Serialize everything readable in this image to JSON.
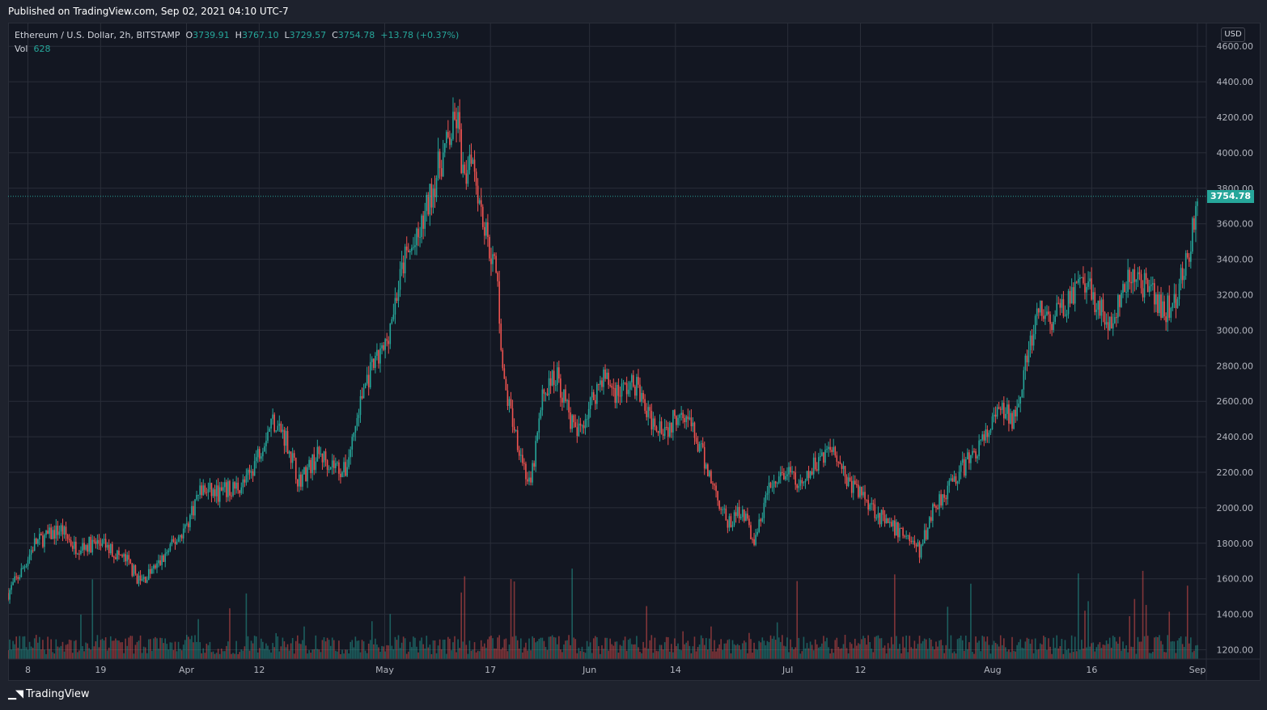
{
  "header": {
    "published": "Published on TradingView.com, Sep 02, 2021 04:10 UTC-7"
  },
  "legend": {
    "symbol": "Ethereum / U.S. Dollar, 2h, BITSTAMP",
    "o_label": "O",
    "o_value": "3739.91",
    "h_label": "H",
    "h_value": "3767.10",
    "l_label": "L",
    "l_value": "3729.57",
    "c_label": "C",
    "c_value": "3754.78",
    "change": "+13.78 (+0.37%)",
    "vol_label": "Vol",
    "vol_value": "628"
  },
  "price_axis": {
    "currency": "USD",
    "last_price": "3754.78"
  },
  "footer": {
    "brand": "TradingView"
  },
  "colors": {
    "up": "#26a69a",
    "down": "#ef5350",
    "background": "#131722",
    "grid": "#2a2e39",
    "text": "#b2b5be"
  },
  "chart_data": {
    "type": "candlestick",
    "title": "Ethereum / U.S. Dollar, 2h, BITSTAMP",
    "xlabel": "",
    "ylabel": "",
    "y_scale": "linear",
    "ylim": [
      1120,
      4700
    ],
    "y_ticks": [
      1200,
      1400,
      1600,
      1800,
      2000,
      2200,
      2400,
      2600,
      2800,
      3000,
      3200,
      3400,
      3600,
      3800,
      4000,
      4200,
      4400,
      4600
    ],
    "y_tick_labels": [
      "1200.00",
      "1400.00",
      "1600.00",
      "1800.00",
      "2000.00",
      "2200.00",
      "2400.00",
      "2600.00",
      "2800.00",
      "3000.00",
      "3200.00",
      "3400.00",
      "3600.00",
      "3800.00",
      "4000.00",
      "4200.00",
      "4400.00",
      "4600.00"
    ],
    "x_range": [
      "2021-03-05",
      "2021-09-01"
    ],
    "x_ticks": [
      {
        "date": "2021-03-08",
        "label": "8"
      },
      {
        "date": "2021-03-19",
        "label": "19"
      },
      {
        "date": "2021-04-01",
        "label": "Apr"
      },
      {
        "date": "2021-04-12",
        "label": "12"
      },
      {
        "date": "2021-05-01",
        "label": "May"
      },
      {
        "date": "2021-05-17",
        "label": "17"
      },
      {
        "date": "2021-06-01",
        "label": "Jun"
      },
      {
        "date": "2021-06-14",
        "label": "14"
      },
      {
        "date": "2021-07-01",
        "label": "Jul"
      },
      {
        "date": "2021-07-12",
        "label": "12"
      },
      {
        "date": "2021-08-01",
        "label": "Aug"
      },
      {
        "date": "2021-08-16",
        "label": "16"
      },
      {
        "date": "2021-09-01",
        "label": "Sep"
      }
    ],
    "last_close": 3754.78,
    "price_path": [
      {
        "date": "2021-03-05",
        "price": 1520
      },
      {
        "date": "2021-03-07",
        "price": 1640
      },
      {
        "date": "2021-03-09",
        "price": 1800
      },
      {
        "date": "2021-03-13",
        "price": 1880
      },
      {
        "date": "2021-03-15",
        "price": 1780
      },
      {
        "date": "2021-03-19",
        "price": 1800
      },
      {
        "date": "2021-03-23",
        "price": 1700
      },
      {
        "date": "2021-03-25",
        "price": 1580
      },
      {
        "date": "2021-03-28",
        "price": 1690
      },
      {
        "date": "2021-04-01",
        "price": 1900
      },
      {
        "date": "2021-04-03",
        "price": 2100
      },
      {
        "date": "2021-04-06",
        "price": 2080
      },
      {
        "date": "2021-04-10",
        "price": 2140
      },
      {
        "date": "2021-04-14",
        "price": 2500
      },
      {
        "date": "2021-04-16",
        "price": 2400
      },
      {
        "date": "2021-04-18",
        "price": 2150
      },
      {
        "date": "2021-04-21",
        "price": 2300
      },
      {
        "date": "2021-04-23",
        "price": 2250
      },
      {
        "date": "2021-04-25",
        "price": 2200
      },
      {
        "date": "2021-04-28",
        "price": 2700
      },
      {
        "date": "2021-05-01",
        "price": 2900
      },
      {
        "date": "2021-05-04",
        "price": 3400
      },
      {
        "date": "2021-05-06",
        "price": 3500
      },
      {
        "date": "2021-05-09",
        "price": 3900
      },
      {
        "date": "2021-05-12",
        "price": 4200
      },
      {
        "date": "2021-05-13",
        "price": 3800
      },
      {
        "date": "2021-05-14",
        "price": 4050
      },
      {
        "date": "2021-05-16",
        "price": 3600
      },
      {
        "date": "2021-05-18",
        "price": 3300
      },
      {
        "date": "2021-05-19",
        "price": 2700
      },
      {
        "date": "2021-05-21",
        "price": 2400
      },
      {
        "date": "2021-05-23",
        "price": 2100
      },
      {
        "date": "2021-05-25",
        "price": 2650
      },
      {
        "date": "2021-05-27",
        "price": 2750
      },
      {
        "date": "2021-05-30",
        "price": 2400
      },
      {
        "date": "2021-06-03",
        "price": 2750
      },
      {
        "date": "2021-06-05",
        "price": 2650
      },
      {
        "date": "2021-06-08",
        "price": 2700
      },
      {
        "date": "2021-06-10",
        "price": 2500
      },
      {
        "date": "2021-06-13",
        "price": 2450
      },
      {
        "date": "2021-06-15",
        "price": 2580
      },
      {
        "date": "2021-06-18",
        "price": 2300
      },
      {
        "date": "2021-06-21",
        "price": 2000
      },
      {
        "date": "2021-06-22",
        "price": 1900
      },
      {
        "date": "2021-06-24",
        "price": 2000
      },
      {
        "date": "2021-06-26",
        "price": 1800
      },
      {
        "date": "2021-06-28",
        "price": 2100
      },
      {
        "date": "2021-07-01",
        "price": 2200
      },
      {
        "date": "2021-07-03",
        "price": 2100
      },
      {
        "date": "2021-07-06",
        "price": 2300
      },
      {
        "date": "2021-07-08",
        "price": 2350
      },
      {
        "date": "2021-07-10",
        "price": 2150
      },
      {
        "date": "2021-07-13",
        "price": 2050
      },
      {
        "date": "2021-07-16",
        "price": 1900
      },
      {
        "date": "2021-07-19",
        "price": 1850
      },
      {
        "date": "2021-07-21",
        "price": 1750
      },
      {
        "date": "2021-07-23",
        "price": 2000
      },
      {
        "date": "2021-07-25",
        "price": 2100
      },
      {
        "date": "2021-07-28",
        "price": 2250
      },
      {
        "date": "2021-07-31",
        "price": 2400
      },
      {
        "date": "2021-08-02",
        "price": 2550
      },
      {
        "date": "2021-08-04",
        "price": 2500
      },
      {
        "date": "2021-08-06",
        "price": 2800
      },
      {
        "date": "2021-08-08",
        "price": 3100
      },
      {
        "date": "2021-08-10",
        "price": 3050
      },
      {
        "date": "2021-08-13",
        "price": 3200
      },
      {
        "date": "2021-08-15",
        "price": 3250
      },
      {
        "date": "2021-08-17",
        "price": 3150
      },
      {
        "date": "2021-08-19",
        "price": 3000
      },
      {
        "date": "2021-08-21",
        "price": 3250
      },
      {
        "date": "2021-08-23",
        "price": 3300
      },
      {
        "date": "2021-08-25",
        "price": 3200
      },
      {
        "date": "2021-08-27",
        "price": 3100
      },
      {
        "date": "2021-08-29",
        "price": 3200
      },
      {
        "date": "2021-08-30",
        "price": 3350
      },
      {
        "date": "2021-08-31",
        "price": 3500
      },
      {
        "date": "2021-09-01",
        "price": 3754.78
      }
    ]
  }
}
